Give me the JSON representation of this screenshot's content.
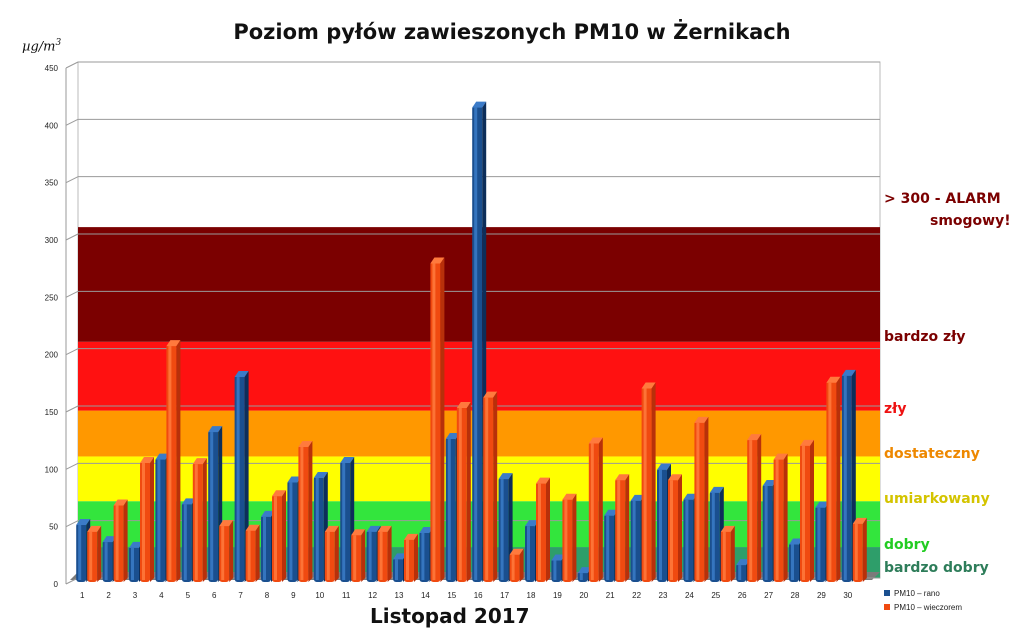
{
  "chart_data": {
    "type": "bar",
    "title": "Poziom pyłów zawieszonych PM10 w Żernikach",
    "xlabel": "Listopad 2017",
    "ylabel": "µg/m3",
    "ylim": [
      0,
      450
    ],
    "yticks": [
      0,
      50,
      100,
      150,
      200,
      250,
      300,
      350,
      400,
      450
    ],
    "categories": [
      "1",
      "2",
      "3",
      "4",
      "5",
      "6",
      "7",
      "8",
      "9",
      "10",
      "11",
      "12",
      "13",
      "14",
      "15",
      "16",
      "17",
      "18",
      "19",
      "20",
      "21",
      "22",
      "23",
      "24",
      "25",
      "26",
      "27",
      "28",
      "29",
      "30"
    ],
    "series": [
      {
        "name": "PM10 – rano",
        "color": "#1a4f8f",
        "values": [
          48,
          33,
          28,
          105,
          66,
          129,
          177,
          55,
          85,
          89,
          102,
          42,
          18,
          41,
          123,
          412,
          88,
          47,
          17,
          6,
          56,
          69,
          96,
          70,
          76,
          13,
          82,
          31,
          63,
          178
        ]
      },
      {
        "name": "PM10 – wieczorem",
        "color": "#f04a10",
        "values": [
          42,
          65,
          102,
          204,
          101,
          47,
          43,
          73,
          116,
          42,
          39,
          42,
          35,
          276,
          150,
          159,
          22,
          84,
          70,
          119,
          87,
          167,
          87,
          137,
          42,
          122,
          105,
          117,
          172,
          49
        ]
      }
    ],
    "bands": [
      {
        "label": "bardzo dobry",
        "from": 0,
        "to": 27,
        "color": "#2e9e6a",
        "label_color": "#2e7d5a"
      },
      {
        "label": "dobry",
        "from": 27,
        "to": 67,
        "color": "#33e53d",
        "label_color": "#22cc22"
      },
      {
        "label": "umiarkowany",
        "from": 67,
        "to": 106,
        "color": "#ffff00",
        "label_color": "#d4c400"
      },
      {
        "label": "dostateczny",
        "from": 106,
        "to": 146,
        "color": "#ff9800",
        "label_color": "#ee8800"
      },
      {
        "label": "zły",
        "from": 146,
        "to": 206,
        "color": "#ff1111",
        "label_color": "#ee1111"
      },
      {
        "label": "bardzo zły",
        "from": 206,
        "to": 306,
        "color": "#7b0000",
        "label_color": "#7b0000"
      }
    ],
    "alarm_label_line1": "> 300 - ALARM",
    "alarm_label_line2": "smogowy!",
    "alarm_label_color": "#7b0000",
    "grid": true,
    "legend_position": "bottom-right"
  }
}
